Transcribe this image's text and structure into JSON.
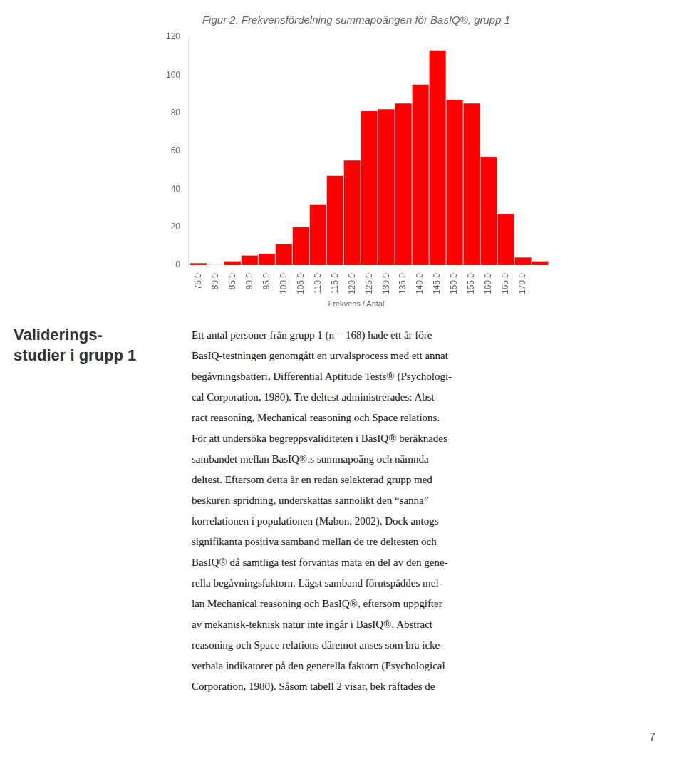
{
  "chart_data": {
    "type": "bar",
    "title": "Figur 2. Frekvensfördelning summapoängen för BasIQ®, grupp 1",
    "x": [
      75,
      80,
      85,
      90,
      95,
      100,
      105,
      110,
      115,
      120,
      125,
      130,
      135,
      140,
      145,
      150,
      155,
      160,
      165,
      170,
      175
    ],
    "values": [
      1,
      0,
      2,
      5,
      6,
      11,
      20,
      32,
      47,
      55,
      81,
      82,
      85,
      95,
      113,
      87,
      85,
      57,
      27,
      4,
      2
    ],
    "color": "#FF0000",
    "xlim": [
      72,
      177.5
    ],
    "xticks": [
      {
        "value": 75,
        "label": "75.0"
      },
      {
        "value": 80,
        "label": "80.0"
      },
      {
        "value": 85,
        "label": "85.0"
      },
      {
        "value": 90,
        "label": "90.0"
      },
      {
        "value": 95,
        "label": "95.0"
      },
      {
        "value": 100,
        "label": "100.0"
      },
      {
        "value": 105,
        "label": "105.0"
      },
      {
        "value": 110,
        "label": "110.0"
      },
      {
        "value": 115,
        "label": "115.0"
      },
      {
        "value": 120,
        "label": "120.0"
      },
      {
        "value": 125,
        "label": "125.0"
      },
      {
        "value": 130,
        "label": "130.0"
      },
      {
        "value": 135,
        "label": "135.0"
      },
      {
        "value": 140,
        "label": "140.0"
      },
      {
        "value": 145,
        "label": "145.0"
      },
      {
        "value": 150,
        "label": "150.0"
      },
      {
        "value": 155,
        "label": "155.0"
      },
      {
        "value": 160,
        "label": "160.0"
      },
      {
        "value": 165,
        "label": "165.0"
      },
      {
        "value": 170,
        "label": "170.0"
      }
    ],
    "ylim": [
      0,
      120
    ],
    "yticks": [
      0,
      20,
      40,
      60,
      80,
      100,
      120
    ],
    "grid": false,
    "annotations": [
      "Frekvens / Antal"
    ]
  },
  "page": {
    "heading": [
      "Validerings-",
      "studier i grupp 1"
    ],
    "body": [
      "Ett antal personer från grupp 1 (n = 168) hade ett år före",
      "BasIQ-testningen genomgått en urvalsprocess med ett annat",
      "begåvningsbatteri, Differential Aptitude Tests® (Psychologi-",
      "cal Corporation, 1980). Tre deltest administrerades: Abst-",
      "ract reasoning, Mechanical reasoning och Space relations.",
      "För att undersöka begreppsvaliditeten i BasIQ® beräknades",
      "sambandet mellan BasIQ®:s summapoäng och nämnda",
      "deltest. Eftersom detta är en redan selekterad grupp med",
      "beskuren spridning, underskattas sannolikt den “sanna”",
      "korrelationen i populationen (Mabon, 2002). Dock antogs",
      "signifikanta positiva samband mellan de tre deltesten och",
      "BasIQ® då samtliga test förväntas mäta en del av den gene-",
      "rella begåvningsfaktorn. Lägst samband förutspåddes mel-",
      "lan Mechanical reasoning och BasIQ®, eftersom uppgifter",
      "av mekanisk-teknisk natur inte ingår i BasIQ®. Abstract",
      "reasoning och Space relations däremot anses som bra icke-",
      "verbala indikatorer på den generella faktorn (Psychological",
      "Corporation, 1980). Såsom tabell 2 visar, bek räftades de"
    ],
    "page_number": "7"
  }
}
